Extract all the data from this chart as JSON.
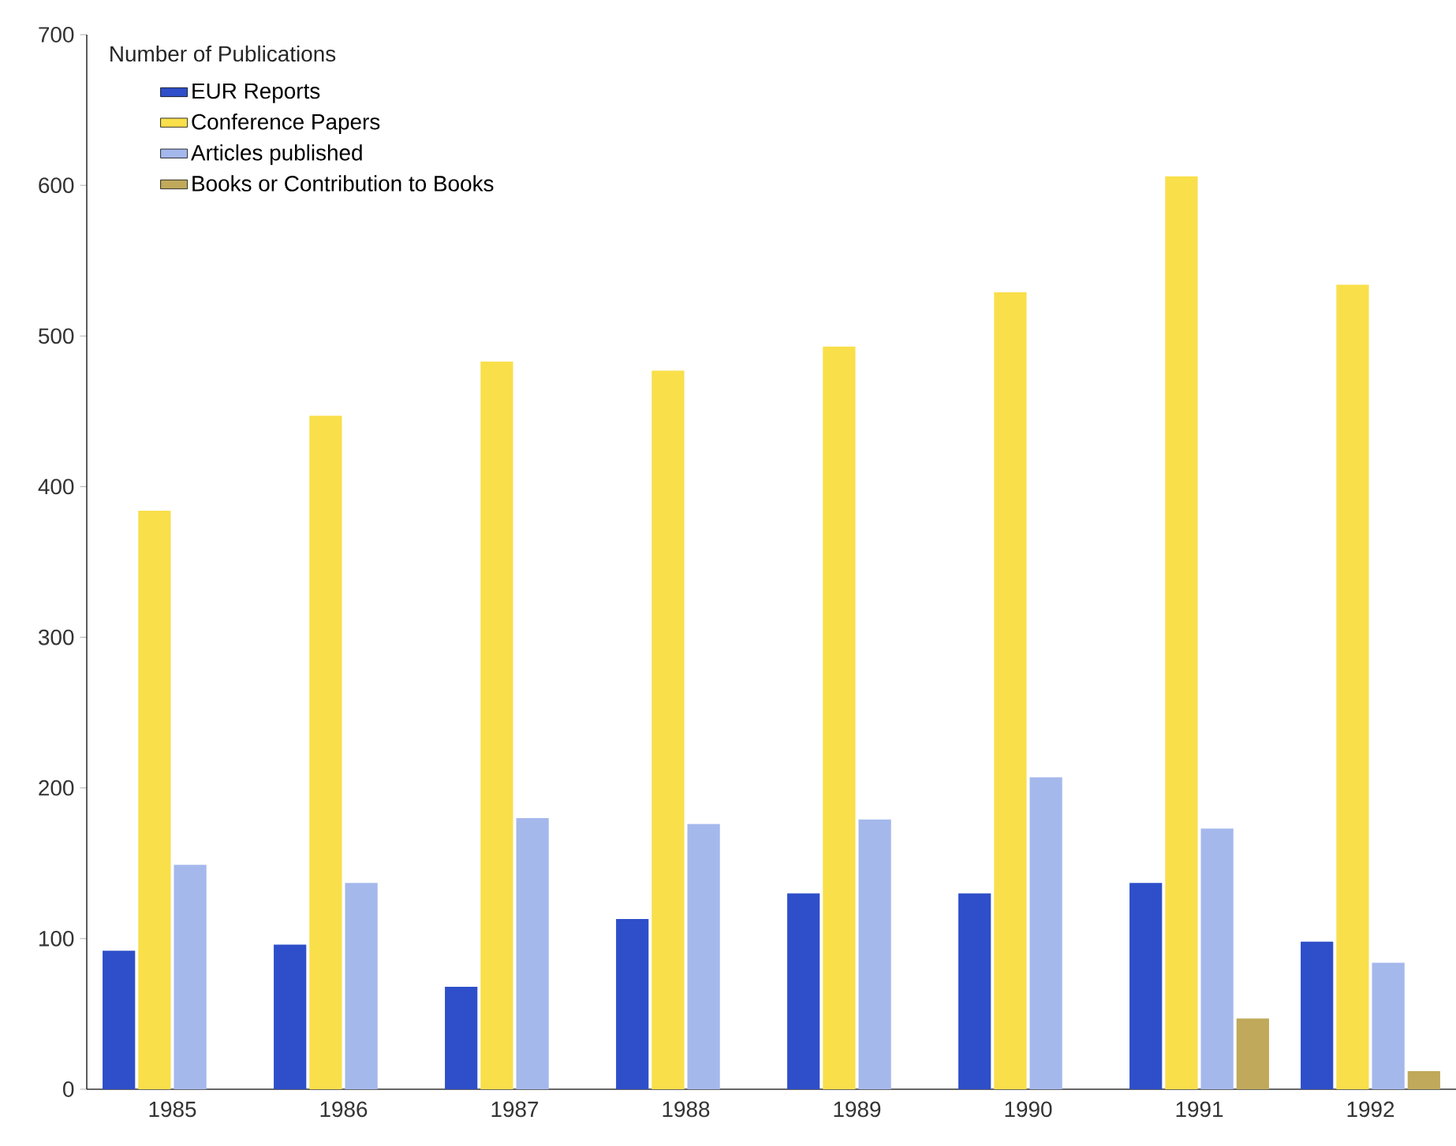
{
  "chart_data": {
    "type": "bar",
    "legend_title": "Number of Publications",
    "categories": [
      "1985",
      "1986",
      "1987",
      "1988",
      "1989",
      "1990",
      "1991",
      "1992"
    ],
    "series": [
      {
        "name": "EUR Reports",
        "color": "#2e4fc9",
        "values": [
          92,
          96,
          68,
          113,
          130,
          130,
          137,
          98
        ]
      },
      {
        "name": "Conference Papers",
        "color": "#f9df4a",
        "values": [
          384,
          447,
          483,
          477,
          493,
          529,
          606,
          534
        ]
      },
      {
        "name": "Articles published",
        "color": "#a5b8ec",
        "values": [
          149,
          137,
          180,
          176,
          179,
          207,
          173,
          84
        ]
      },
      {
        "name": "Books or Contribution to Books",
        "color": "#c0a95a",
        "values": [
          null,
          null,
          null,
          null,
          null,
          null,
          47,
          12
        ]
      }
    ],
    "ylim": [
      0,
      700
    ],
    "yticks": [
      0,
      100,
      200,
      300,
      400,
      500,
      600,
      700
    ],
    "legend": "top left"
  }
}
